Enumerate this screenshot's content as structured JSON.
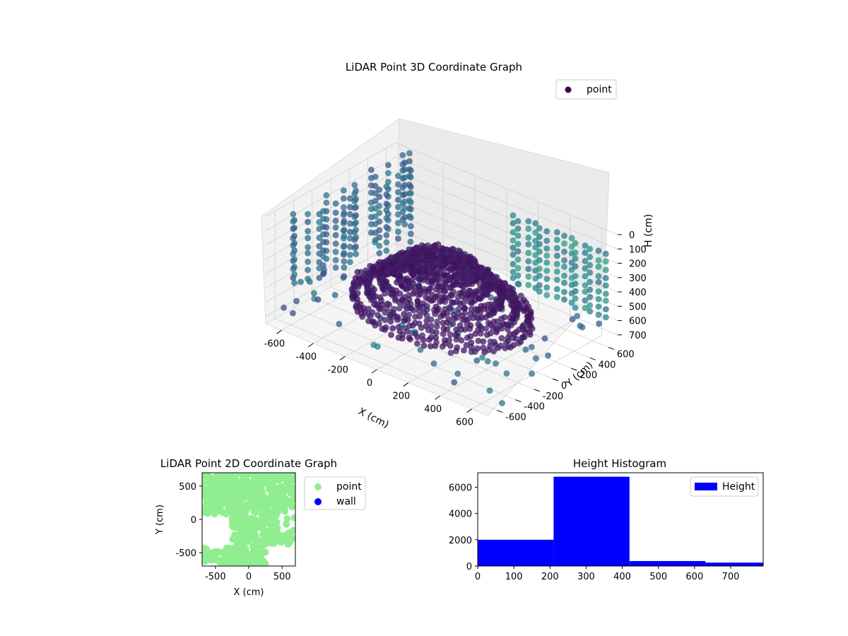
{
  "colors": {
    "point_green": "#90ee90",
    "wall_blue": "#0000ff",
    "hist_blue": "#0000ff",
    "viridis_dark": "#440154",
    "viridis_mid": "#31688e",
    "viridis_teal": "#35b779"
  },
  "chart_data": [
    {
      "type": "scatter",
      "projection": "3d",
      "title": "LiDAR Point 3D Coordinate Graph",
      "xlabel": "X (cm)",
      "ylabel": "Y (cm)",
      "zlabel": "H (cm)",
      "xticks": [
        -600,
        -400,
        -200,
        0,
        200,
        400,
        600
      ],
      "yticks": [
        -600,
        -400,
        -200,
        0,
        200,
        400,
        600
      ],
      "zticks": [
        0,
        100,
        200,
        300,
        400,
        500,
        600,
        700
      ],
      "xlim": [
        -700,
        700
      ],
      "ylim": [
        -700,
        700
      ],
      "zlim": [
        0,
        750
      ],
      "z_inverted": true,
      "legend": {
        "entries": [
          {
            "label": "point",
            "color": "#440154"
          }
        ],
        "placement": "upper-right"
      },
      "colormap": "viridis",
      "grid": true
    },
    {
      "type": "scatter",
      "title": "LiDAR Point 2D Coordinate Graph",
      "xlabel": "X (cm)",
      "ylabel": "Y (cm)",
      "xticks": [
        -500,
        0,
        500
      ],
      "yticks": [
        -500,
        0,
        500
      ],
      "xlim": [
        -700,
        700
      ],
      "ylim": [
        -700,
        700
      ],
      "series": [
        {
          "name": "point",
          "color": "#90ee90"
        },
        {
          "name": "wall",
          "color": "#0000ff"
        }
      ],
      "legend": {
        "placement": "outside-right"
      },
      "grid": false
    },
    {
      "type": "bar",
      "title": "Height Histogram",
      "xticks": [
        0,
        100,
        200,
        300,
        400,
        500,
        600,
        700
      ],
      "yticks": [
        0,
        2000,
        4000,
        6000
      ],
      "xlim": [
        0,
        790
      ],
      "ylim": [
        0,
        7100
      ],
      "bins": [
        {
          "x0": 0,
          "x1": 210,
          "count": 2000
        },
        {
          "x0": 210,
          "x1": 420,
          "count": 6800
        },
        {
          "x0": 420,
          "x1": 630,
          "count": 380
        },
        {
          "x0": 630,
          "x1": 840,
          "count": 260
        }
      ],
      "series": [
        {
          "name": "Height",
          "color": "#0000ff"
        }
      ],
      "legend": {
        "placement": "upper-right"
      },
      "grid": false
    }
  ]
}
